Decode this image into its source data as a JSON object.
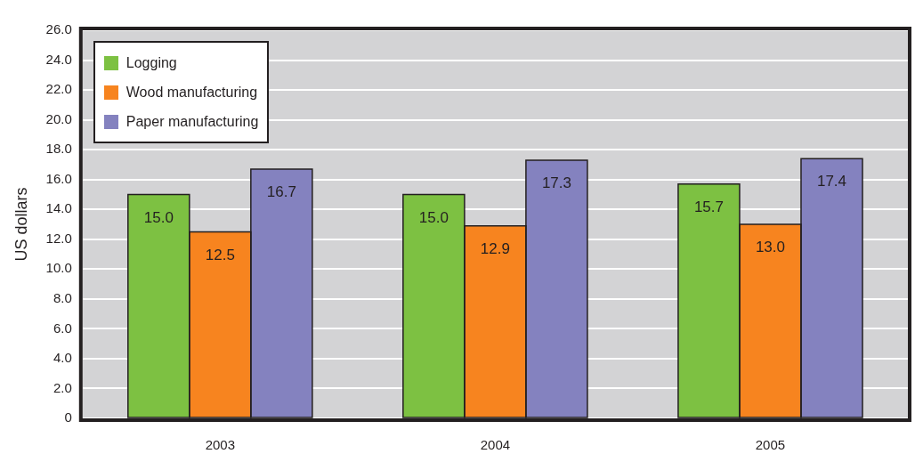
{
  "chart_data": {
    "type": "bar",
    "ylabel": "US dollars",
    "categories": [
      "2003",
      "2004",
      "2005"
    ],
    "series": [
      {
        "name": "Logging",
        "color": "#7dc142",
        "values": [
          15.0,
          15.0,
          15.7
        ],
        "value_labels": [
          "15.0",
          "15.0",
          "15.7"
        ]
      },
      {
        "name": "Wood manufacturing",
        "color": "#f7841f",
        "values": [
          12.5,
          12.9,
          13.0
        ],
        "value_labels": [
          "12.5",
          "12.9",
          "13.0"
        ]
      },
      {
        "name": "Paper manufacturing",
        "color": "#8482bf",
        "values": [
          16.7,
          17.3,
          17.4
        ],
        "value_labels": [
          "16.7",
          "17.3",
          "17.4"
        ]
      }
    ],
    "ylim": [
      0,
      26
    ],
    "yticks": [
      0,
      {
        "value": 2,
        "label": "2.0"
      },
      {
        "value": 4,
        "label": "4.0"
      },
      {
        "value": 6,
        "label": "6.0"
      },
      {
        "value": 8,
        "label": "8.0"
      },
      {
        "value": 10,
        "label": "10.0"
      },
      {
        "value": 12,
        "label": "12.0"
      },
      {
        "value": 14,
        "label": "14.0"
      },
      {
        "value": 16,
        "label": "16.0"
      },
      {
        "value": 18,
        "label": "18.0"
      },
      {
        "value": 20,
        "label": "20.0"
      },
      {
        "value": 22,
        "label": "22.0"
      },
      {
        "value": 24,
        "label": "24.0"
      },
      {
        "value": 26,
        "label": "26.0"
      }
    ],
    "grid": "y",
    "legend": "top left"
  }
}
